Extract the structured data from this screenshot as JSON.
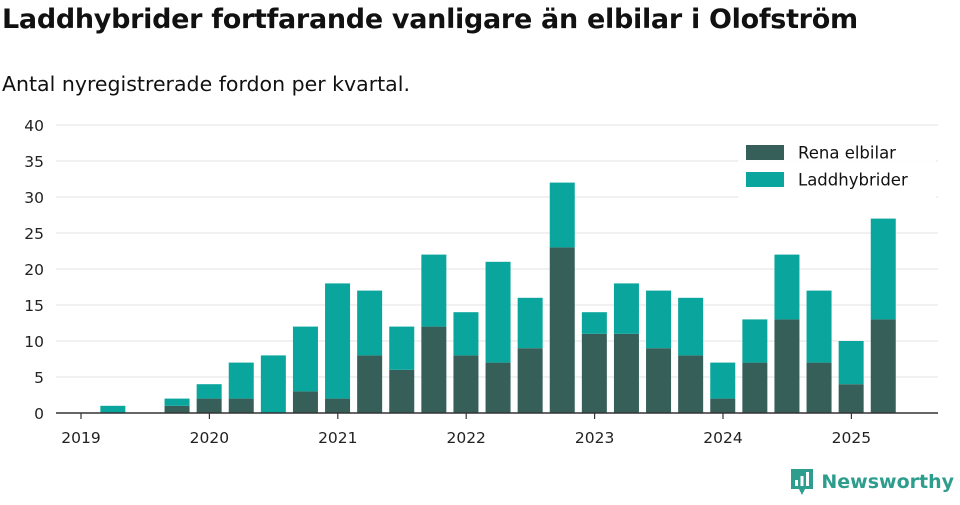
{
  "header": {
    "title": "Laddhybrider fortfarande vanligare än elbilar i Olofström",
    "subtitle": "Antal nyregistrerade fordon per kvartal."
  },
  "brand": {
    "label": "Newsworthy",
    "icon": "bar-chart-icon",
    "color": "#2d9d8e"
  },
  "colors": {
    "electric": "#365f5a",
    "plugin_hybrid": "#0aa59d",
    "grid": "#e3e3e3",
    "axis": "#333333"
  },
  "chart_data": {
    "type": "bar",
    "stacked": true,
    "title": "Laddhybrider fortfarande vanligare än elbilar i Olofström",
    "subtitle": "Antal nyregistrerade fordon per kvartal.",
    "xlabel": "",
    "ylabel": "",
    "ylim": [
      0,
      40
    ],
    "yticks": [
      0,
      5,
      10,
      15,
      20,
      25,
      30,
      35,
      40
    ],
    "grid": true,
    "legend_position": "top-right",
    "categories": [
      "2019 Q1",
      "2019 Q2",
      "2019 Q3",
      "2019 Q4",
      "2020 Q1",
      "2020 Q2",
      "2020 Q3",
      "2020 Q4",
      "2021 Q1",
      "2021 Q2",
      "2021 Q3",
      "2021 Q4",
      "2022 Q1",
      "2022 Q2",
      "2022 Q3",
      "2022 Q4",
      "2023 Q1",
      "2023 Q2",
      "2023 Q3",
      "2023 Q4",
      "2024 Q1",
      "2024 Q2",
      "2024 Q3",
      "2024 Q4",
      "2025 Q1",
      "2025 Q2"
    ],
    "xtick_labels": [
      "2019",
      "2020",
      "2021",
      "2022",
      "2023",
      "2024",
      "2025"
    ],
    "series": [
      {
        "name": "Rena elbilar",
        "color": "#365f5a",
        "values": [
          0,
          0,
          0,
          1,
          2,
          2,
          0,
          3,
          2,
          8,
          6,
          12,
          8,
          7,
          9,
          23,
          11,
          11,
          9,
          8,
          2,
          7,
          13,
          7,
          4,
          13
        ]
      },
      {
        "name": "Laddhybrider",
        "color": "#0aa59d",
        "values": [
          0,
          1,
          0,
          1,
          2,
          5,
          8,
          9,
          16,
          9,
          6,
          10,
          6,
          14,
          7,
          9,
          3,
          7,
          8,
          8,
          5,
          6,
          9,
          10,
          6,
          14
        ]
      }
    ]
  }
}
